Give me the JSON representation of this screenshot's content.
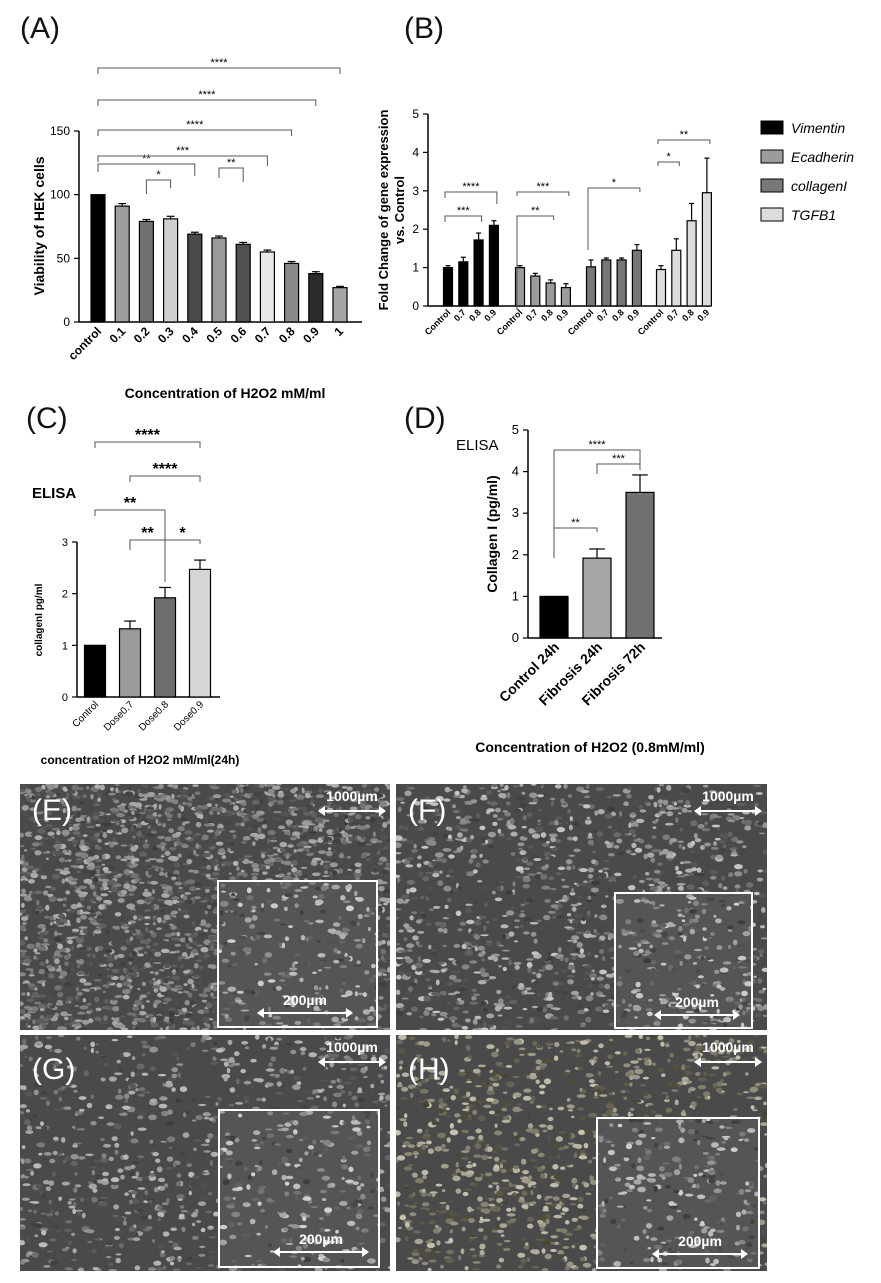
{
  "panels": {
    "A": "(A)",
    "B": "(B)",
    "C": "(C)",
    "D": "(D)",
    "E": "(E)",
    "F": "(F)",
    "G": "(G)",
    "H": "(H)"
  },
  "chart_data": [
    {
      "panel": "A",
      "type": "bar",
      "categories": [
        "control",
        "0.1",
        "0.2",
        "0.3",
        "0.4",
        "0.5",
        "0.6",
        "0.7",
        "0.8",
        "0.9",
        "1"
      ],
      "values": [
        100,
        91,
        79,
        81,
        69,
        66,
        61,
        55,
        46,
        38,
        27
      ],
      "errors": [
        0,
        2,
        1.5,
        2,
        1.5,
        1.5,
        1.5,
        1.5,
        1.5,
        1.5,
        1
      ],
      "colors": [
        "#000000",
        "#9e9e9e",
        "#707070",
        "#cfcfcf",
        "#4a4a4a",
        "#9a9a9a",
        "#505050",
        "#e8e8e8",
        "#8a8a8a",
        "#2a2a2a",
        "#a5a5a5"
      ],
      "xlabel": "Concentration of H2O2 mM/ml",
      "ylabel": "Viability of  HEK cells",
      "ylim": [
        0,
        150
      ],
      "yticks": [
        0,
        50,
        100,
        150
      ],
      "significance": [
        {
          "from": 2,
          "to": 3,
          "label": "*"
        },
        {
          "from": 5,
          "to": 6,
          "label": "**"
        },
        {
          "from": 0,
          "to": 4,
          "label": "**"
        },
        {
          "from": 0,
          "to": 7,
          "label": "***"
        },
        {
          "from": 0,
          "to": 8,
          "label": "****"
        },
        {
          "from": 0,
          "to": 9,
          "label": "****"
        },
        {
          "from": 0,
          "to": 10,
          "label": "****"
        }
      ]
    },
    {
      "panel": "B",
      "type": "bar",
      "groups": [
        "Vimentin",
        "Ecadherin",
        "collagenI",
        "TGFB1"
      ],
      "categories": [
        "Control",
        "0.7",
        "0.8",
        "0.9"
      ],
      "series": [
        {
          "name": "Vimentin",
          "values": [
            1.0,
            1.15,
            1.72,
            2.1
          ],
          "errors": [
            0.05,
            0.12,
            0.18,
            0.12
          ],
          "color": "#000000"
        },
        {
          "name": "Ecadherin",
          "values": [
            1.0,
            0.78,
            0.6,
            0.48
          ],
          "errors": [
            0.05,
            0.07,
            0.08,
            0.1
          ],
          "color": "#9c9c9c"
        },
        {
          "name": "collagenI",
          "values": [
            1.02,
            1.2,
            1.2,
            1.45
          ],
          "errors": [
            0.18,
            0.05,
            0.05,
            0.15
          ],
          "color": "#777777"
        },
        {
          "name": "TGFB1",
          "values": [
            0.95,
            1.45,
            2.22,
            2.95
          ],
          "errors": [
            0.1,
            0.3,
            0.45,
            0.9
          ],
          "color": "#dcdcdc"
        }
      ],
      "ylabel": "Fold Change of gene expression vs. Control",
      "ylim": [
        0,
        5
      ],
      "yticks": [
        0,
        1,
        2,
        3,
        4,
        5
      ],
      "legend": [
        "Vimentin",
        "Ecadherin",
        "collagenI",
        "TGFB1"
      ],
      "significance": [
        {
          "group": 0,
          "from": 0,
          "to": 2,
          "label": "***"
        },
        {
          "group": 0,
          "from": 0,
          "to": 3,
          "label": "****"
        },
        {
          "group": 1,
          "from": 0,
          "to": 2,
          "label": "**"
        },
        {
          "group": 1,
          "from": 0,
          "to": 3,
          "label": "***"
        },
        {
          "group": 2,
          "from": 0,
          "to": 3,
          "label": "*"
        },
        {
          "group": 3,
          "from": 0,
          "to": 1,
          "label": "*"
        },
        {
          "group": 3,
          "from": 0,
          "to": 3,
          "label": "**"
        }
      ]
    },
    {
      "panel": "C",
      "type": "bar",
      "title": "ELISA",
      "categories": [
        "Control",
        "Dose0.7",
        "Dose0.8",
        "Dose0.9"
      ],
      "values": [
        1.0,
        1.32,
        1.92,
        2.47
      ],
      "errors": [
        0,
        0.15,
        0.2,
        0.18
      ],
      "colors": [
        "#000000",
        "#9a9a9a",
        "#6e6e6e",
        "#d6d6d6"
      ],
      "xlabel": "concentration of H2O2 mM/ml(24h)",
      "ylabel": "collagenI pg/ml",
      "ylim": [
        0,
        3
      ],
      "yticks": [
        0,
        1,
        2,
        3
      ],
      "significance": [
        {
          "from": 2,
          "to": 3,
          "label": "*"
        },
        {
          "from": 1,
          "to": 2,
          "label": "**"
        },
        {
          "from": 0,
          "to": 2,
          "label": "**"
        },
        {
          "from": 1,
          "to": 3,
          "label": "****"
        },
        {
          "from": 0,
          "to": 3,
          "label": "****"
        }
      ]
    },
    {
      "panel": "D",
      "type": "bar",
      "title": "ELISA",
      "categories": [
        "Control 24h",
        "Fibrosis 24h",
        "Fibrosis 72h"
      ],
      "values": [
        1.0,
        1.92,
        3.5
      ],
      "errors": [
        0,
        0.22,
        0.42
      ],
      "colors": [
        "#000000",
        "#a6a6a6",
        "#707070"
      ],
      "xlabel": "Concentration of H2O2 (0.8mM/ml)",
      "ylabel": "Collagen I (pg/ml)",
      "ylim": [
        0,
        5
      ],
      "yticks": [
        0,
        1,
        2,
        3,
        4,
        5
      ],
      "significance": [
        {
          "from": 0,
          "to": 1,
          "label": "**"
        },
        {
          "from": 1,
          "to": 2,
          "label": "***"
        },
        {
          "from": 0,
          "to": 2,
          "label": "****"
        }
      ]
    }
  ],
  "micrographs": [
    {
      "label": "(E)",
      "scale_main": "1000µm",
      "scale_inset": "200µm"
    },
    {
      "label": "(F)",
      "scale_main": "1000µm",
      "scale_inset": "200µm"
    },
    {
      "label": "(G)",
      "scale_main": "1000µm",
      "scale_inset": "200µm"
    },
    {
      "label": "(H)",
      "scale_main": "1000µm",
      "scale_inset": "200µm"
    }
  ]
}
